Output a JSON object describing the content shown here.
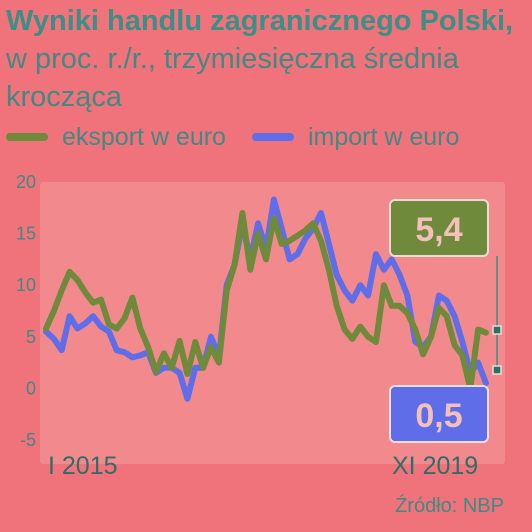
{
  "title": {
    "bold": "Wyniki handlu zagranicznego Polski,",
    "rest": " w proc. r./r., trzymiesięczna średnia krocząca"
  },
  "colors": {
    "background": "#f0727a",
    "plot_bg": "#f28a8d",
    "eksport": "#6f8a3a",
    "import": "#5f6ee8",
    "text": "#3f8b84"
  },
  "source": "Źródło: NBP",
  "chart_data": {
    "type": "line",
    "ylim": [
      -5,
      20
    ],
    "yticks": [
      "20",
      "15",
      "10",
      "5",
      "0",
      "-5"
    ],
    "x_start_label": "I 2015",
    "x_end_label": "XI 2019",
    "grid": false,
    "legend_position": "top",
    "series": [
      {
        "name": "eksport w euro",
        "color": "#6f8a3a",
        "values": [
          5.8,
          7.5,
          9.5,
          11.3,
          10.5,
          9.3,
          8.3,
          8.6,
          6.2,
          5.8,
          6.8,
          8.8,
          5.8,
          4.0,
          1.6,
          3.4,
          2.0,
          4.6,
          1.4,
          4.5,
          2.0,
          4.0,
          2.5,
          9.5,
          12.0,
          17.0,
          11.5,
          15.0,
          12.5,
          16.5,
          14.0,
          14.3,
          14.8,
          15.3,
          16.0,
          14.3,
          11.5,
          8.0,
          5.7,
          4.8,
          6.0,
          5.0,
          4.5,
          10.0,
          8.0,
          8.0,
          7.3,
          5.7,
          3.3,
          5.0,
          7.8,
          7.0,
          4.2,
          3.2,
          0.0,
          5.7,
          5.4
        ],
        "callout": "5,4"
      },
      {
        "name": "import w euro",
        "color": "#5f6ee8",
        "values": [
          5.5,
          4.8,
          3.7,
          7.0,
          5.8,
          6.3,
          7.0,
          6.0,
          5.5,
          3.7,
          3.5,
          3.0,
          3.2,
          3.5,
          1.5,
          2.0,
          2.0,
          1.5,
          -1.0,
          2.0,
          2.0,
          5.0,
          3.0,
          10.0,
          12.0,
          16.0,
          12.5,
          16.0,
          13.5,
          18.3,
          15.5,
          12.5,
          13.0,
          14.5,
          15.5,
          17.0,
          14.0,
          11.0,
          9.5,
          8.5,
          10.0,
          9.0,
          13.0,
          11.5,
          12.5,
          11.0,
          9.0,
          4.5,
          4.0,
          5.0,
          9.0,
          8.5,
          7.0,
          4.5,
          1.5,
          2.5,
          0.5
        ],
        "callout": "0,5"
      }
    ]
  }
}
